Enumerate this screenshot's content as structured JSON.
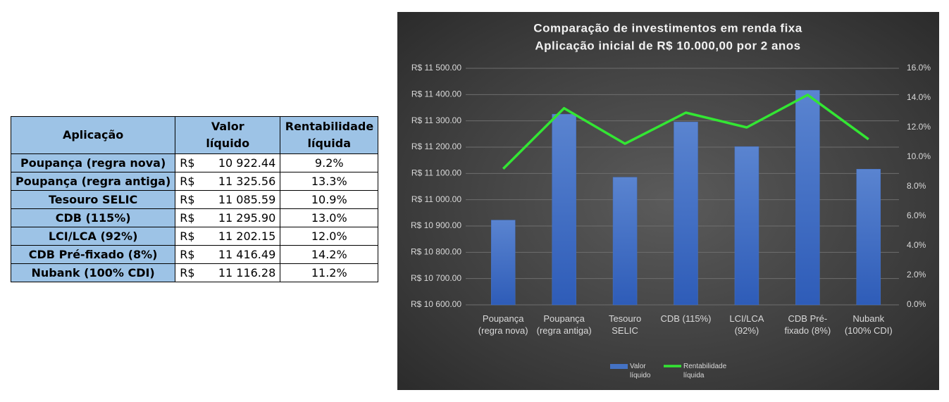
{
  "table": {
    "header": [
      "Aplicação",
      "Valor líquido",
      "Rentabilidade líquida"
    ],
    "rows": [
      [
        "Poupança (regra nova)",
        "R$",
        "10 922.44",
        "9.2%"
      ],
      [
        "Poupança (regra antiga)",
        "R$",
        "11 325.56",
        "13.3%"
      ],
      [
        "Tesouro SELIC",
        "R$",
        "11 085.59",
        "10.9%"
      ],
      [
        "CDB (115%)",
        "R$",
        "11 295.90",
        "13.0%"
      ],
      [
        "LCI/LCA (92%)",
        "R$",
        "11 202.15",
        "12.0%"
      ],
      [
        "CDB Pré-fixado (8%)",
        "R$",
        "11 416.49",
        "14.2%"
      ],
      [
        "Nubank (100% CDI)",
        "R$",
        "11 116.28",
        "11.2%"
      ]
    ]
  },
  "chart_data": {
    "type": "bar",
    "title": "Comparação de investimentos em renda fixa",
    "subtitle": "Aplicação inicial de R$ 10.000,00 por 2 anos",
    "categories": [
      "Poupança (regra nova)",
      "Poupança (regra antiga)",
      "Tesouro SELIC",
      "CDB (115%)",
      "LCI/LCA (92%)",
      "CDB Pré-fixado (8%)",
      "Nubank (100% CDI)"
    ],
    "series": [
      {
        "name": "Valor líquido",
        "type": "bar",
        "color": "#4472c4",
        "values": [
          10922.44,
          11325.56,
          11085.59,
          11295.9,
          11202.15,
          11416.49,
          11116.28
        ]
      },
      {
        "name": "Rentabilidade líquida",
        "type": "line",
        "axis": "y2",
        "color": "#33e633",
        "values": [
          9.2,
          13.3,
          10.9,
          13.0,
          12.0,
          14.2,
          11.2
        ]
      }
    ],
    "ylim": [
      10600,
      11500
    ],
    "yticks": [
      {
        "value": 10600,
        "label": "R$ 10 600.00"
      },
      {
        "value": 10700,
        "label": "R$ 10 700.00"
      },
      {
        "value": 10800,
        "label": "R$ 10 800.00"
      },
      {
        "value": 10900,
        "label": "R$ 10 900.00"
      },
      {
        "value": 11000,
        "label": "R$ 11 000.00"
      },
      {
        "value": 11100,
        "label": "R$ 11 100.00"
      },
      {
        "value": 11200,
        "label": "R$ 11 200.00"
      },
      {
        "value": 11300,
        "label": "R$ 11 300.00"
      },
      {
        "value": 11400,
        "label": "R$ 11 400.00"
      },
      {
        "value": 11500,
        "label": "R$ 11 500.00"
      }
    ],
    "y2lim": [
      0,
      16
    ],
    "y2ticks": [
      {
        "value": 0,
        "label": "0.0%"
      },
      {
        "value": 2,
        "label": "2.0%"
      },
      {
        "value": 4,
        "label": "4.0%"
      },
      {
        "value": 6,
        "label": "6.0%"
      },
      {
        "value": 8,
        "label": "8.0%"
      },
      {
        "value": 10,
        "label": "10.0%"
      },
      {
        "value": 12,
        "label": "12.0%"
      },
      {
        "value": 14,
        "label": "14.0%"
      },
      {
        "value": 16,
        "label": "16.0%"
      }
    ],
    "grid": true,
    "legend": "bottom"
  }
}
